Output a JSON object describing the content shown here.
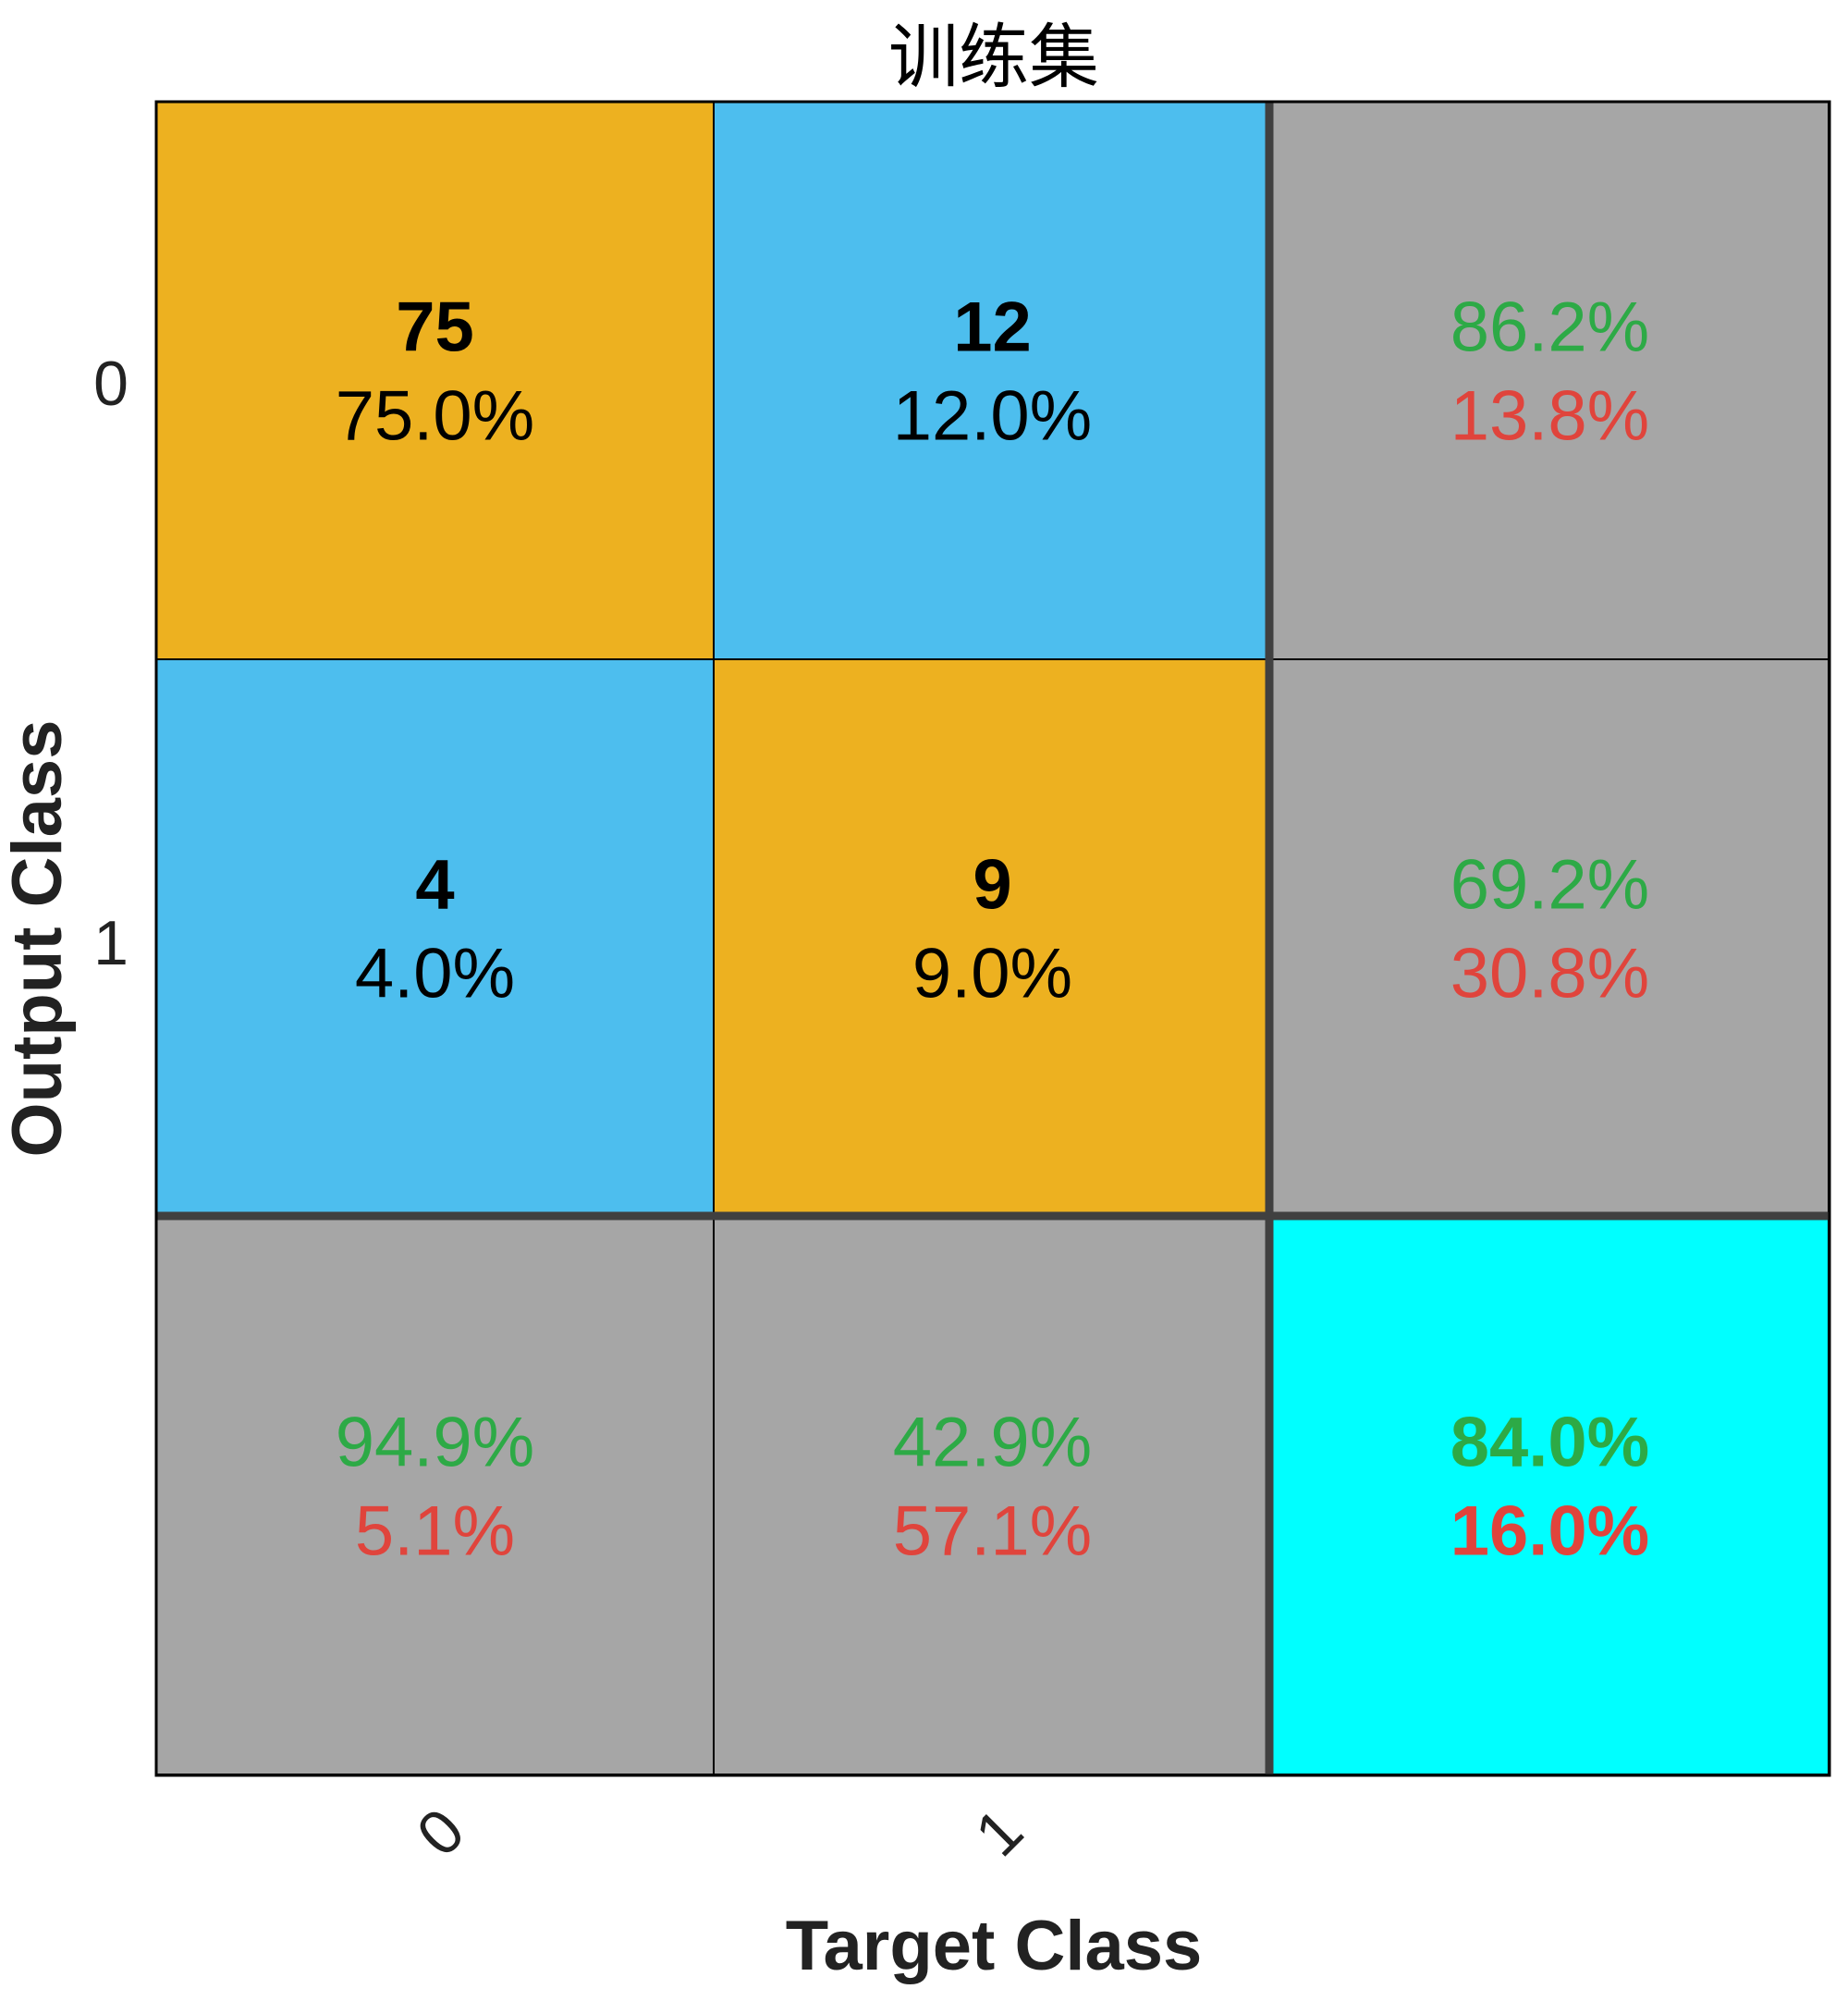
{
  "chart_data": {
    "type": "table",
    "title": "训练集",
    "xlabel": "Target Class",
    "ylabel": "Output Class",
    "x_ticks": [
      "0",
      "1"
    ],
    "y_ticks": [
      "0",
      "1"
    ],
    "matrix": [
      [
        {
          "count": "75",
          "percent": "75.0%"
        },
        {
          "count": "12",
          "percent": "12.0%"
        }
      ],
      [
        {
          "count": "4",
          "percent": "4.0%"
        },
        {
          "count": "9",
          "percent": "9.0%"
        }
      ]
    ],
    "row_summary": [
      {
        "correct": "86.2%",
        "incorrect": "13.8%"
      },
      {
        "correct": "69.2%",
        "incorrect": "30.8%"
      }
    ],
    "column_summary": [
      {
        "correct": "94.9%",
        "incorrect": "5.1%"
      },
      {
        "correct": "42.9%",
        "incorrect": "57.1%"
      }
    ],
    "overall": {
      "correct": "84.0%",
      "incorrect": "16.0%"
    },
    "colors": {
      "diagonal": "#EDB120",
      "off_diagonal": "#4DBEEE",
      "summary": "#A6A6A6",
      "overall": "#00FFFF",
      "correct_text": "#2DAA46",
      "incorrect_text": "#E0443C"
    }
  }
}
